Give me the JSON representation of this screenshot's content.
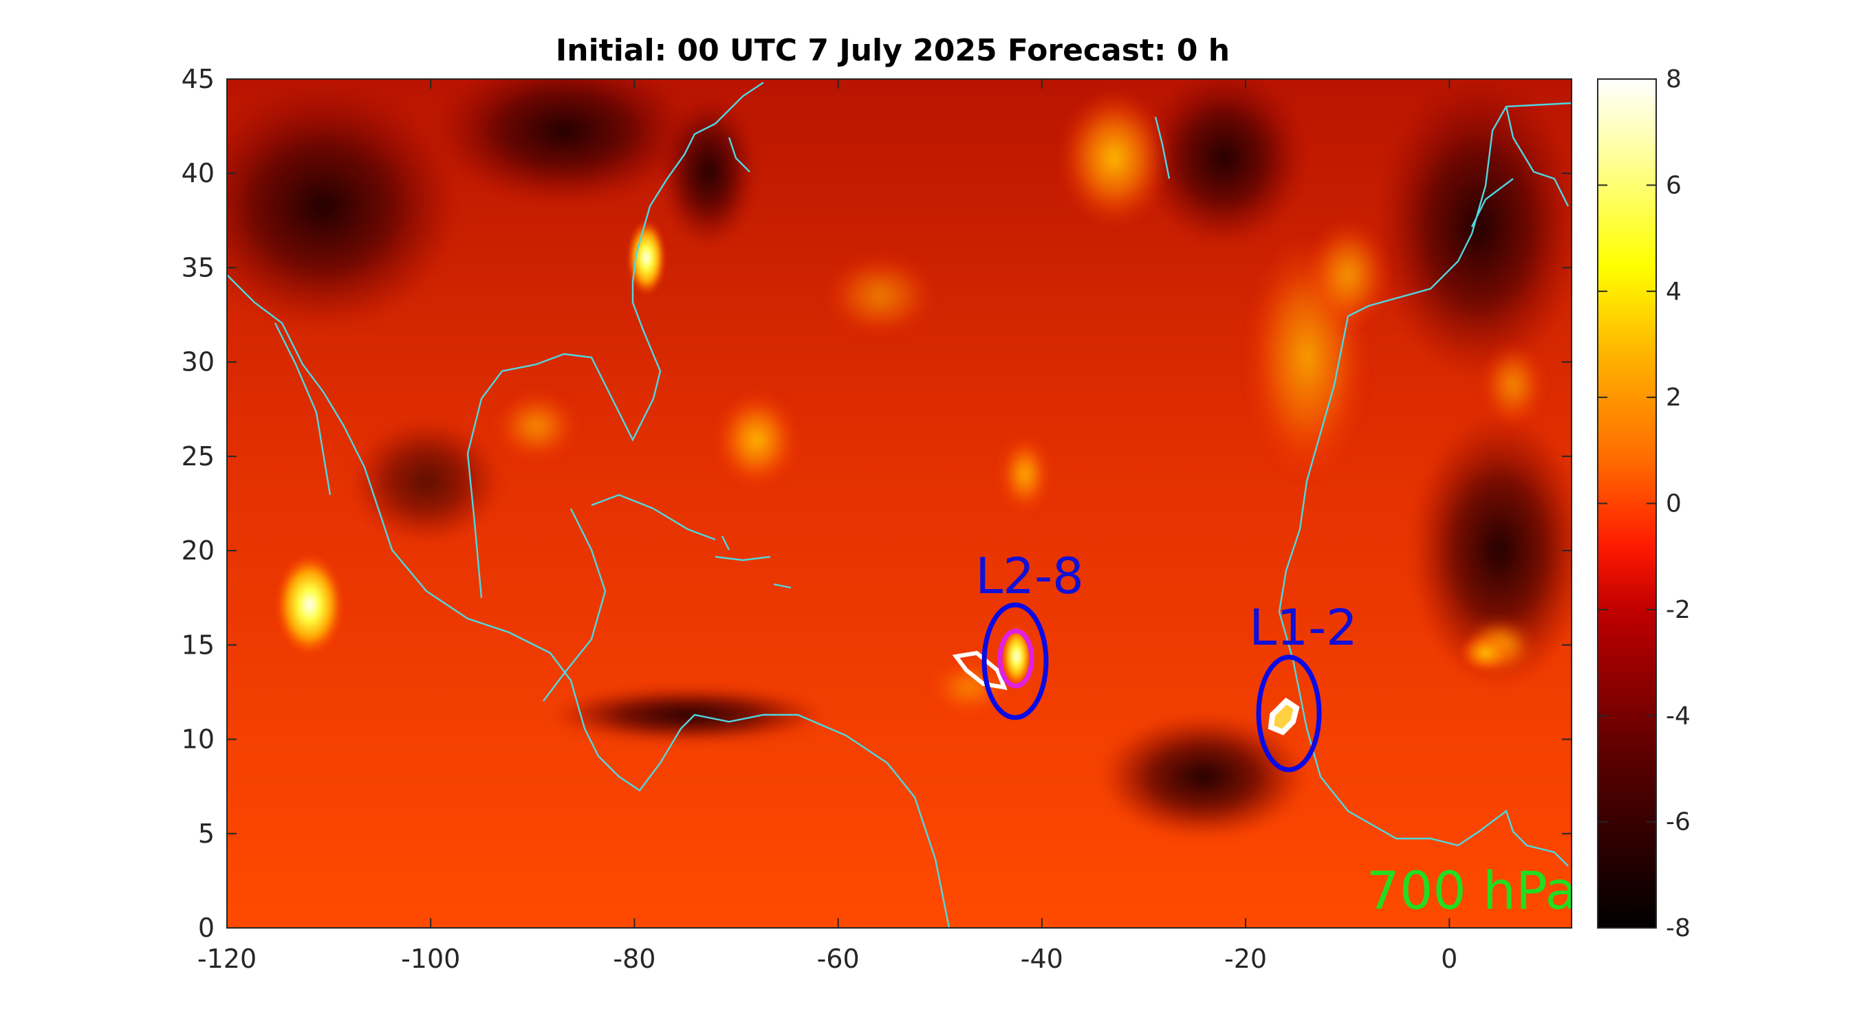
{
  "title": "Initial: 00 UTC 7 July 2025 Forecast: 0 h",
  "map": {
    "lon_range": [
      -120,
      12
    ],
    "lat_range": [
      0,
      45
    ],
    "x_ticks": [
      "-120",
      "-100",
      "-80",
      "-60",
      "-40",
      "-20",
      "0"
    ],
    "y_ticks": [
      "0",
      "5",
      "10",
      "15",
      "20",
      "25",
      "30",
      "35",
      "40",
      "45"
    ],
    "level_label": "700 hPa",
    "coastline_color": "#4fd8e0",
    "systems": [
      {
        "label": "L2-8",
        "lon": -43.5,
        "lat": 14.0
      },
      {
        "label": "L1-2",
        "lon": -16.5,
        "lat": 11.0
      }
    ],
    "features": [
      {
        "name": "warm-core-pacific",
        "lon": -111,
        "lat": 16
      },
      {
        "name": "warm-core-carolinas",
        "lon": -79,
        "lat": 35
      }
    ],
    "colors": {
      "system_ring": "#0a0ae6",
      "inner_ring": "#e020e0",
      "contour": "#ffffff"
    }
  },
  "colorbar": {
    "range": [
      -8,
      8
    ],
    "ticks": [
      "8",
      "6",
      "4",
      "2",
      "0",
      "-2",
      "-4",
      "-6",
      "-8"
    ],
    "colormap": "hot"
  }
}
